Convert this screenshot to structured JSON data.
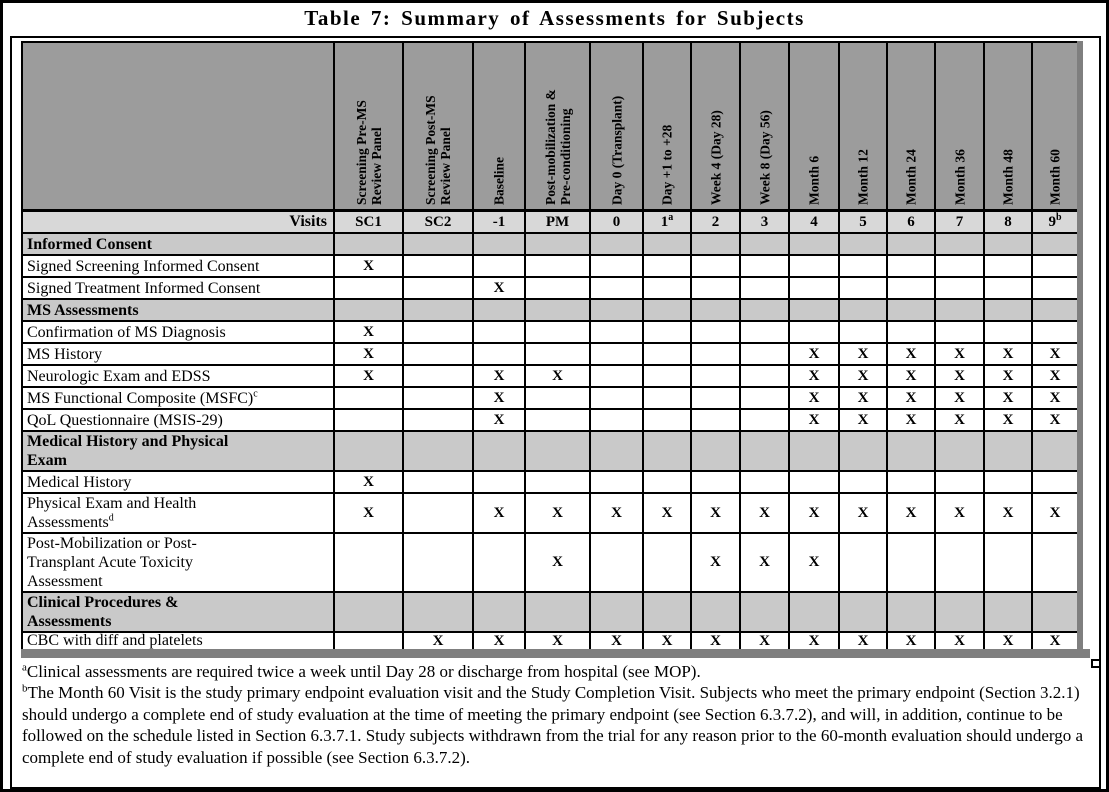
{
  "title": "Table 7: Summary of Assessments for Subjects",
  "colors": {
    "header_bg": "#9c9c9c",
    "visits_row_bg": "#d8d8d8",
    "section_row_bg": "#c9c9c9",
    "table_shadow": "#7f7f7f"
  },
  "table": {
    "visits_label": "Visits",
    "columns": [
      {
        "header": "Screening Pre-MS\nReview Panel",
        "visit": "SC1",
        "visit_sup": ""
      },
      {
        "header": "Screening Post-MS\nReview Panel",
        "visit": "SC2",
        "visit_sup": ""
      },
      {
        "header": "Baseline",
        "visit": "-1",
        "visit_sup": ""
      },
      {
        "header": "Post-mobilization &\nPre-conditioning",
        "visit": "PM",
        "visit_sup": ""
      },
      {
        "header": "Day 0 (Transplant)",
        "visit": "0",
        "visit_sup": ""
      },
      {
        "header": "Day +1 to +28",
        "visit": "1",
        "visit_sup": "a"
      },
      {
        "header": "Week 4 (Day 28)",
        "visit": "2",
        "visit_sup": ""
      },
      {
        "header": "Week 8 (Day 56)",
        "visit": "3",
        "visit_sup": ""
      },
      {
        "header": "Month 6",
        "visit": "4",
        "visit_sup": ""
      },
      {
        "header": "Month 12",
        "visit": "5",
        "visit_sup": ""
      },
      {
        "header": "Month 24",
        "visit": "6",
        "visit_sup": ""
      },
      {
        "header": "Month 36",
        "visit": "7",
        "visit_sup": ""
      },
      {
        "header": "Month 48",
        "visit": "8",
        "visit_sup": ""
      },
      {
        "header": "Month 60",
        "visit": "9",
        "visit_sup": "b"
      }
    ],
    "rows": [
      {
        "type": "section",
        "label": "Informed Consent",
        "sup": ""
      },
      {
        "type": "item",
        "label": "Signed Screening Informed Consent",
        "sup": "",
        "marks": [
          "X",
          "",
          "",
          "",
          "",
          "",
          "",
          "",
          "",
          "",
          "",
          "",
          "",
          ""
        ]
      },
      {
        "type": "item",
        "label": "Signed Treatment Informed Consent",
        "sup": "",
        "marks": [
          "",
          "",
          "X",
          "",
          "",
          "",
          "",
          "",
          "",
          "",
          "",
          "",
          "",
          ""
        ]
      },
      {
        "type": "section",
        "label": "MS Assessments",
        "sup": ""
      },
      {
        "type": "item",
        "label": "Confirmation of MS Diagnosis",
        "sup": "",
        "marks": [
          "X",
          "",
          "",
          "",
          "",
          "",
          "",
          "",
          "",
          "",
          "",
          "",
          "",
          ""
        ]
      },
      {
        "type": "item",
        "label": "MS History",
        "sup": "",
        "marks": [
          "X",
          "",
          "",
          "",
          "",
          "",
          "",
          "",
          "X",
          "X",
          "X",
          "X",
          "X",
          "X"
        ]
      },
      {
        "type": "item",
        "label": "Neurologic Exam and EDSS",
        "sup": "",
        "marks": [
          "X",
          "",
          "X",
          "X",
          "",
          "",
          "",
          "",
          "X",
          "X",
          "X",
          "X",
          "X",
          "X"
        ]
      },
      {
        "type": "item",
        "label": "MS Functional Composite (MSFC)",
        "sup": "c",
        "marks": [
          "",
          "",
          "X",
          "",
          "",
          "",
          "",
          "",
          "X",
          "X",
          "X",
          "X",
          "X",
          "X"
        ]
      },
      {
        "type": "item",
        "label": "QoL Questionnaire (MSIS-29)",
        "sup": "",
        "marks": [
          "",
          "",
          "X",
          "",
          "",
          "",
          "",
          "",
          "X",
          "X",
          "X",
          "X",
          "X",
          "X"
        ]
      },
      {
        "type": "section",
        "label": "Medical History and Physical\nExam",
        "sup": ""
      },
      {
        "type": "item",
        "label": "Medical History",
        "sup": "",
        "marks": [
          "X",
          "",
          "",
          "",
          "",
          "",
          "",
          "",
          "",
          "",
          "",
          "",
          "",
          ""
        ]
      },
      {
        "type": "item",
        "label": "Physical Exam and Health\nAssessments",
        "sup": "d",
        "marks": [
          "X",
          "",
          "X",
          "X",
          "X",
          "X",
          "X",
          "X",
          "X",
          "X",
          "X",
          "X",
          "X",
          "X"
        ]
      },
      {
        "type": "item",
        "label": "Post-Mobilization or Post-\nTransplant Acute Toxicity\nAssessment",
        "sup": "",
        "marks": [
          "",
          "",
          "",
          "X",
          "",
          "",
          "X",
          "X",
          "X",
          "",
          "",
          "",
          "",
          ""
        ]
      },
      {
        "type": "section",
        "label": "Clinical Procedures  &\nAssessments",
        "sup": ""
      },
      {
        "type": "item",
        "clip": true,
        "label": "CBC with diff and platelets",
        "sup": "",
        "marks": [
          "",
          "X",
          "X",
          "X",
          "X",
          "X",
          "X",
          "X",
          "X",
          "X",
          "X",
          "X",
          "X",
          "X"
        ]
      }
    ]
  },
  "footnotes": [
    {
      "marker": "a",
      "text": "Clinical assessments are required twice a week until Day 28 or discharge from hospital (see MOP)."
    },
    {
      "marker": "b",
      "text": "The Month 60 Visit is the study primary endpoint evaluation visit and the Study Completion Visit. Subjects who meet the primary endpoint (Section 3.2.1) should undergo a complete end of study evaluation at the time of meeting the primary endpoint (see Section 6.3.7.2), and will, in addition, continue to be followed on the schedule listed in Section 6.3.7.1.  Study subjects withdrawn from the trial for any reason prior to the 60-month evaluation should undergo a complete end of study evaluation if possible (see Section 6.3.7.2)."
    }
  ]
}
